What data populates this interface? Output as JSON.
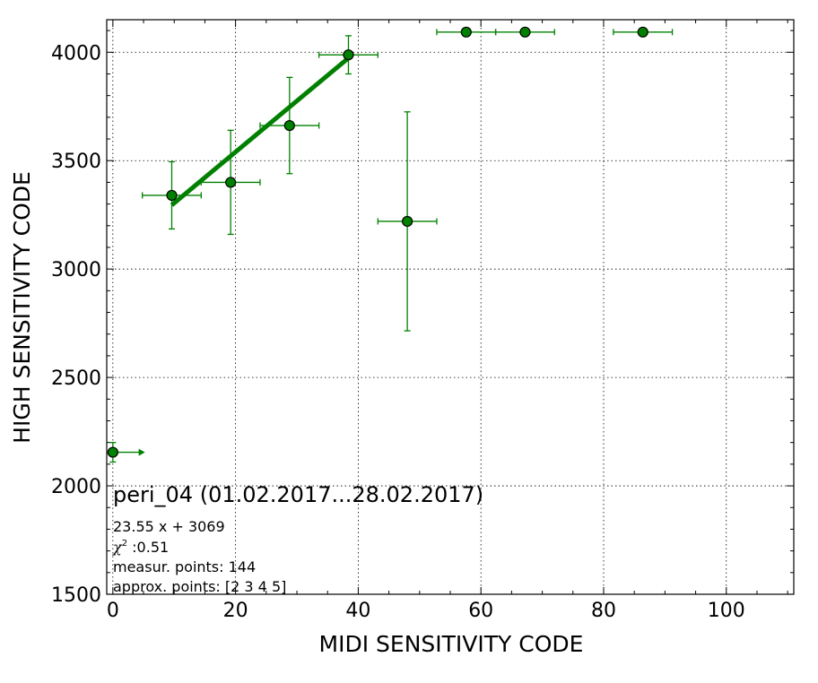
{
  "chart_data": {
    "type": "scatter",
    "xlabel": "MIDI SENSITIVITY CODE",
    "ylabel": "HIGH SENSITIVITY CODE",
    "xlim": [
      -1,
      111
    ],
    "ylim": [
      1500,
      4150
    ],
    "xticks": [
      0,
      20,
      40,
      60,
      80,
      100
    ],
    "yticks": [
      1500,
      2000,
      2500,
      3000,
      3500,
      4000
    ],
    "grid": true,
    "series": [
      {
        "color": "#008000",
        "marker": "circle",
        "points": [
          {
            "x": 0,
            "y": 2155,
            "yerr": 45,
            "xerr_plus": 4.5,
            "xerr_minus": 0,
            "arrow_right": true
          },
          {
            "x": 9.6,
            "y": 3340,
            "xerr": 4.8,
            "yerr": 155
          },
          {
            "x": 19.2,
            "y": 3400,
            "xerr": 4.8,
            "yerr": 240
          },
          {
            "x": 28.8,
            "y": 3662,
            "xerr": 4.8,
            "yerr": 222
          },
          {
            "x": 38.4,
            "y": 3988,
            "xerr": 4.8,
            "yerr": 88
          },
          {
            "x": 48.0,
            "y": 3220,
            "xerr": 4.8,
            "yerr": 505
          },
          {
            "x": 57.6,
            "y": 4093,
            "xerr": 4.8,
            "yerr": 0
          },
          {
            "x": 67.2,
            "y": 4093,
            "xerr": 4.8,
            "yerr": 0
          },
          {
            "x": 86.4,
            "y": 4093,
            "xerr": 4.8,
            "yerr": 0
          }
        ]
      }
    ],
    "fit_line": {
      "slope": 23.55,
      "intercept": 3069,
      "x_range": [
        9.6,
        38.4
      ],
      "color": "#008000"
    },
    "annotations": {
      "title": "peri_04 (01.02.2017...28.02.2017)",
      "equation": "23.55 x + 3069",
      "chi_symbol": "χ",
      "chi_exponent": "2",
      "chi_value": " :0.51",
      "measur_points": "measur. points: 144",
      "approx_points": "approx. points: [2 3 4 5]"
    }
  }
}
